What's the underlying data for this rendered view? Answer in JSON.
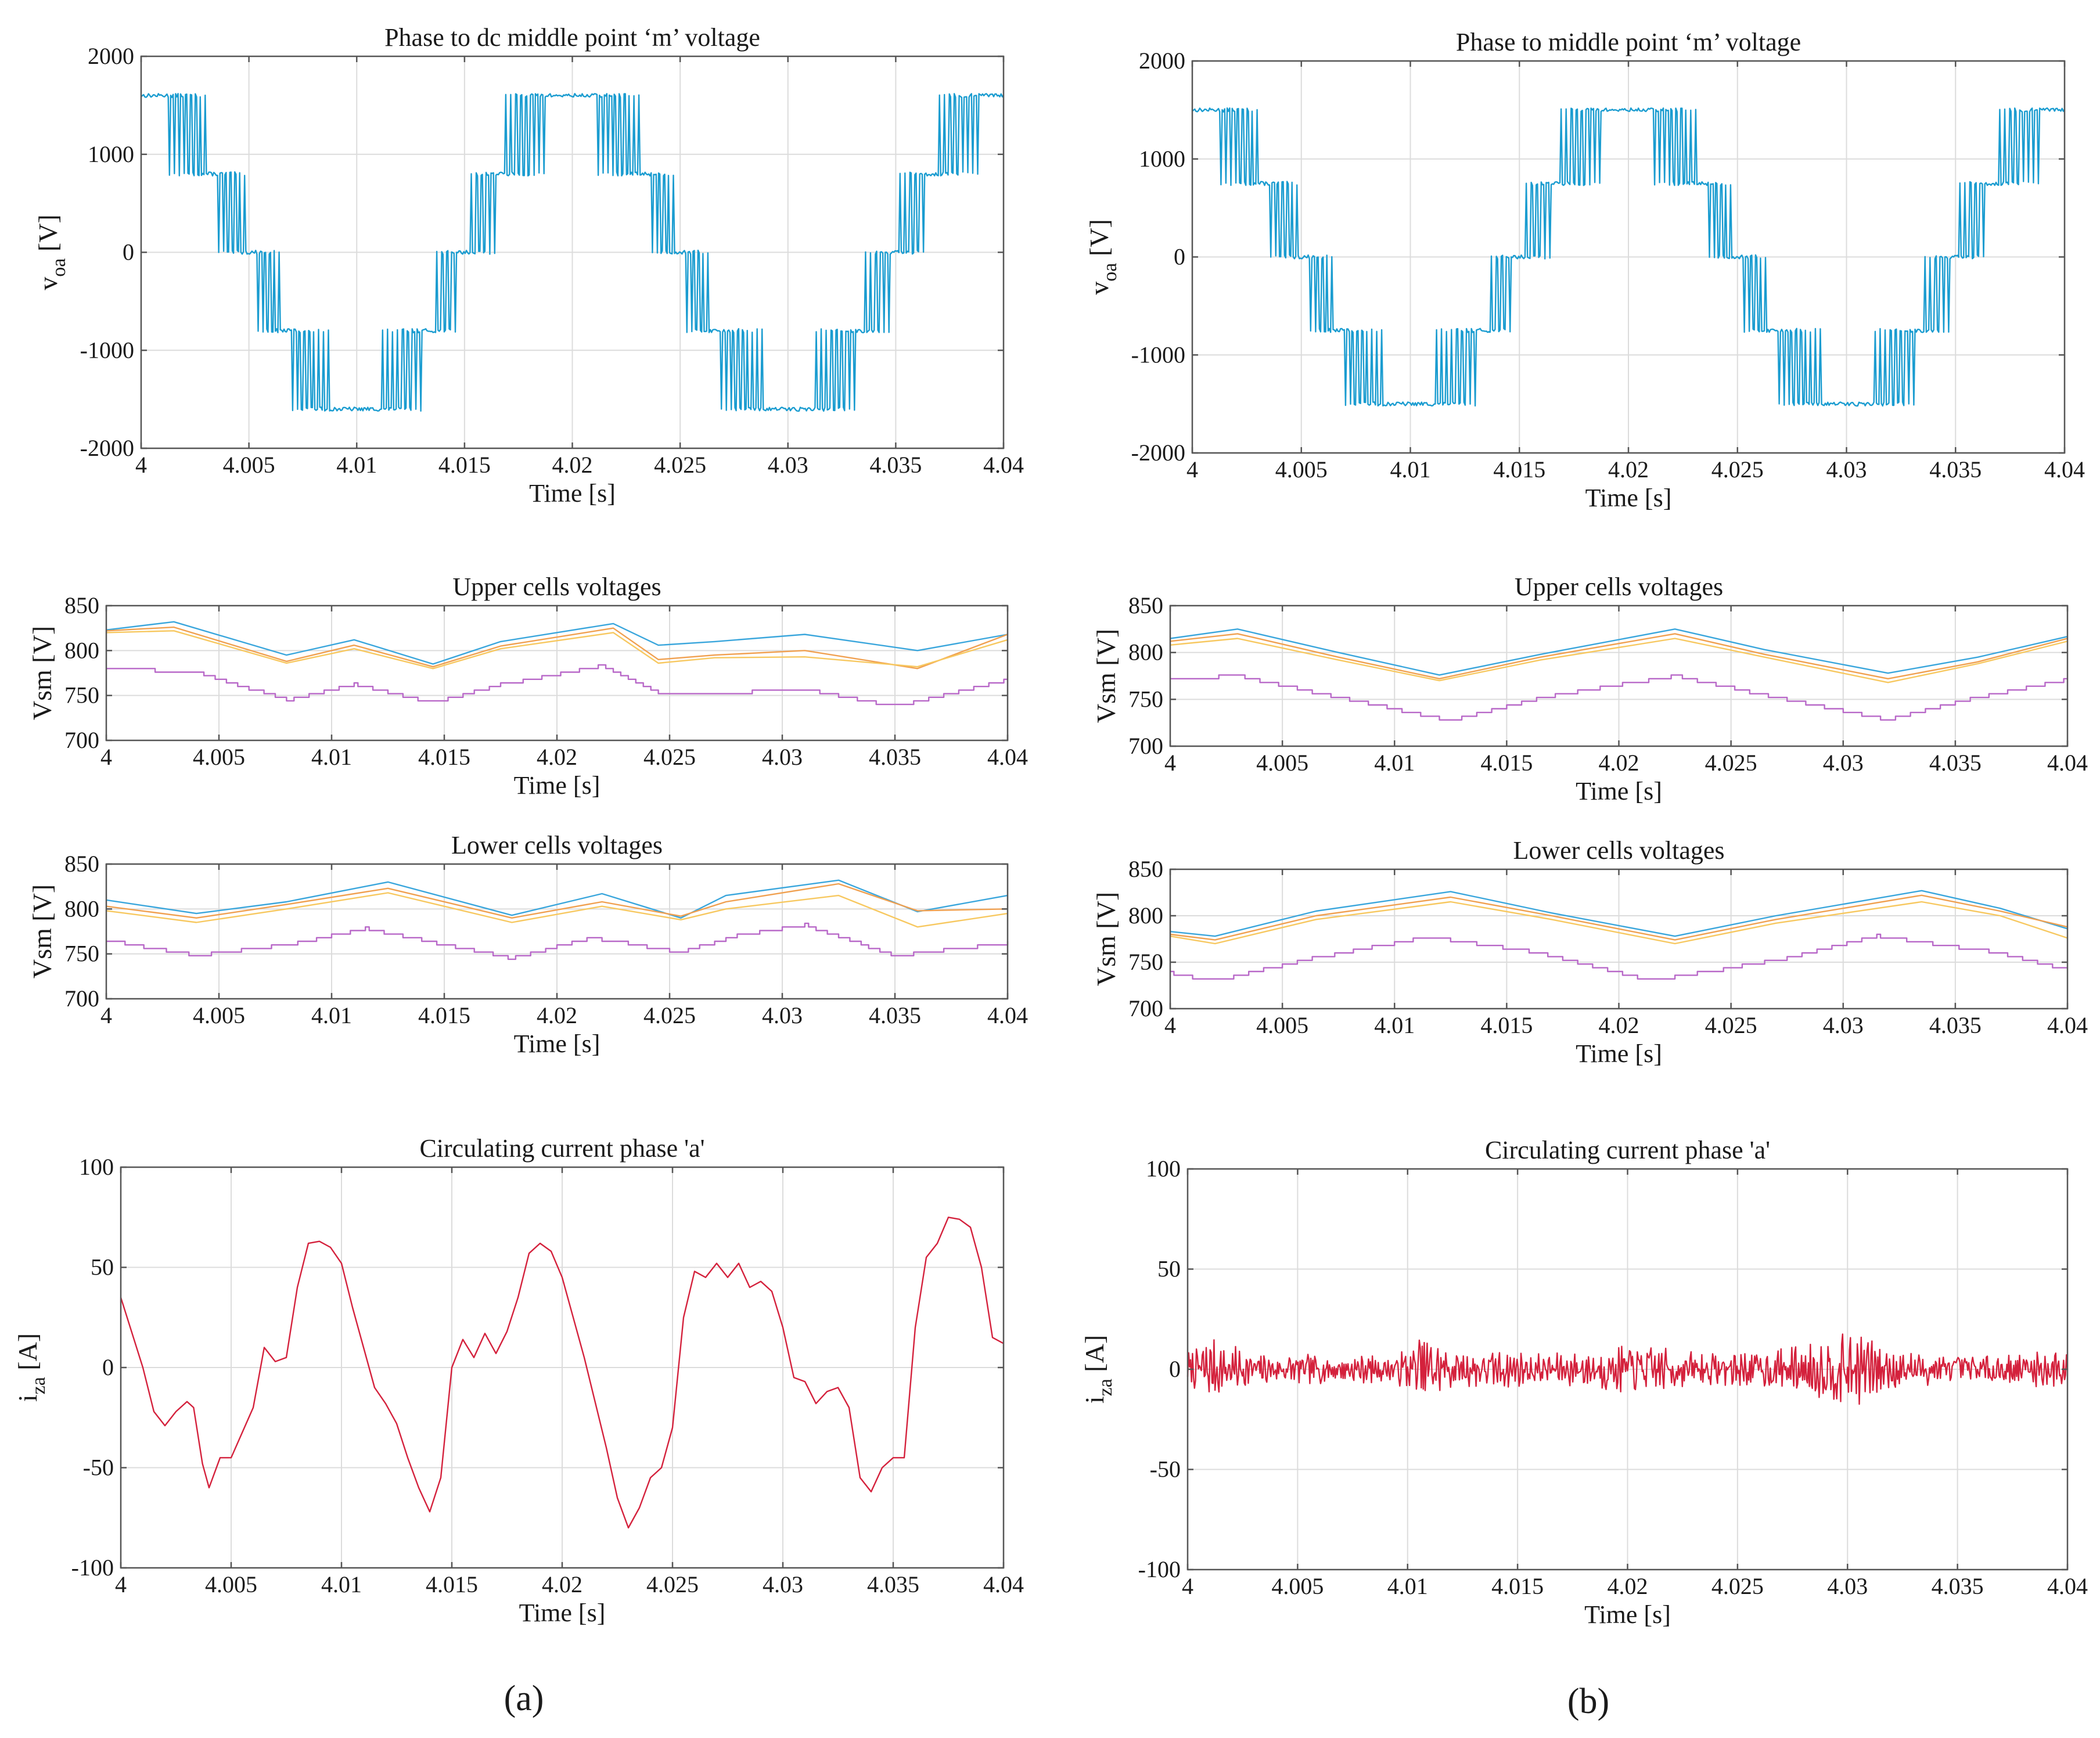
{
  "figure": {
    "panel_labels": [
      "(a)",
      "(b)"
    ]
  },
  "chart_data": [
    {
      "type": "line",
      "id": "a1",
      "title": "Phase to dc middle point ‘m’ voltage",
      "xlabel": "Time [s]",
      "ylabel": "v",
      "ylabel_sub": "oa",
      "ylabel_tail": " [V]",
      "xlim": [
        4,
        4.04
      ],
      "ylim": [
        -2000,
        2000
      ],
      "xticks": [
        4,
        4.005,
        4.01,
        4.015,
        4.02,
        4.025,
        4.03,
        4.035,
        4.04
      ],
      "xtick_labels": [
        "4",
        "4.005",
        "4.01",
        "4.015",
        "4.02",
        "4.025",
        "4.03",
        "4.035",
        "4.04"
      ],
      "yticks": [
        -2000,
        -1000,
        0,
        1000,
        2000
      ],
      "ytick_labels": [
        "-2000",
        "-1000",
        "0",
        "1000",
        "2000"
      ],
      "series": [
        {
          "name": "v_oa",
          "color": "#1a9cd0",
          "generator": "multilevel",
          "amp": 1600,
          "phase": 1.5708,
          "freq": 50,
          "levels": [
            -1600,
            -800,
            0,
            800,
            1600
          ],
          "samples": 700
        }
      ]
    },
    {
      "type": "line",
      "id": "a2",
      "title": "Upper cells voltages",
      "xlabel": "Time [s]",
      "ylabel": "Vsm [V]",
      "xlim": [
        4,
        4.04
      ],
      "ylim": [
        700,
        850
      ],
      "xticks": [
        4,
        4.005,
        4.01,
        4.015,
        4.02,
        4.025,
        4.03,
        4.035,
        4.04
      ],
      "xtick_labels": [
        "4",
        "4.005",
        "4.01",
        "4.015",
        "4.02",
        "4.025",
        "4.03",
        "4.035",
        "4.04"
      ],
      "yticks": [
        700,
        750,
        800,
        850
      ],
      "ytick_labels": [
        "700",
        "750",
        "800",
        "850"
      ],
      "series": [
        {
          "name": "cell 1",
          "color": "#3aa6dc",
          "x": [
            4,
            4.003,
            4.008,
            4.011,
            4.0145,
            4.0175,
            4.0225,
            4.0245,
            4.027,
            4.031,
            4.036,
            4.04
          ],
          "values": [
            823,
            832,
            795,
            812,
            785,
            810,
            830,
            806,
            810,
            818,
            800,
            818
          ]
        },
        {
          "name": "cell 2",
          "color": "#f0a050",
          "x": [
            4,
            4.003,
            4.008,
            4.011,
            4.0145,
            4.0175,
            4.0225,
            4.0245,
            4.027,
            4.031,
            4.036,
            4.04
          ],
          "values": [
            822,
            826,
            788,
            806,
            782,
            805,
            825,
            790,
            795,
            800,
            780,
            818
          ]
        },
        {
          "name": "cell 3",
          "color": "#f7c860",
          "x": [
            4,
            4.003,
            4.008,
            4.011,
            4.0145,
            4.0175,
            4.0225,
            4.0245,
            4.027,
            4.031,
            4.036,
            4.04
          ],
          "values": [
            820,
            822,
            786,
            802,
            780,
            802,
            820,
            786,
            792,
            793,
            782,
            812
          ]
        },
        {
          "name": "cell 4",
          "color": "#b868c8",
          "step": true,
          "x": [
            4,
            4.004,
            4.008,
            4.011,
            4.0145,
            4.0175,
            4.022,
            4.0245,
            4.027,
            4.031,
            4.035,
            4.04
          ],
          "values": [
            780,
            776,
            745,
            762,
            742,
            762,
            783,
            752,
            752,
            757,
            738,
            767
          ]
        }
      ]
    },
    {
      "type": "line",
      "id": "a3",
      "title": "Lower cells voltages",
      "xlabel": "Time [s]",
      "ylabel": "Vsm [V]",
      "xlim": [
        4,
        4.04
      ],
      "ylim": [
        700,
        850
      ],
      "xticks": [
        4,
        4.005,
        4.01,
        4.015,
        4.02,
        4.025,
        4.03,
        4.035,
        4.04
      ],
      "xtick_labels": [
        "4",
        "4.005",
        "4.01",
        "4.015",
        "4.02",
        "4.025",
        "4.03",
        "4.035",
        "4.04"
      ],
      "yticks": [
        700,
        750,
        800,
        850
      ],
      "ytick_labels": [
        "700",
        "750",
        "800",
        "850"
      ],
      "series": [
        {
          "name": "cell 1",
          "color": "#3aa6dc",
          "x": [
            4,
            4.004,
            4.008,
            4.0125,
            4.018,
            4.022,
            4.0255,
            4.0275,
            4.0325,
            4.036,
            4.04
          ],
          "values": [
            810,
            795,
            808,
            830,
            793,
            817,
            790,
            815,
            832,
            797,
            815
          ]
        },
        {
          "name": "cell 2",
          "color": "#f0a050",
          "x": [
            4,
            4.004,
            4.008,
            4.0125,
            4.018,
            4.022,
            4.0255,
            4.0275,
            4.0325,
            4.036,
            4.04
          ],
          "values": [
            803,
            790,
            805,
            823,
            790,
            808,
            792,
            808,
            828,
            798,
            800
          ]
        },
        {
          "name": "cell 3",
          "color": "#f7c860",
          "x": [
            4,
            4.004,
            4.008,
            4.0125,
            4.018,
            4.022,
            4.0255,
            4.0275,
            4.0325,
            4.036,
            4.04
          ],
          "values": [
            798,
            785,
            800,
            818,
            785,
            803,
            788,
            800,
            815,
            780,
            795
          ]
        },
        {
          "name": "cell 4",
          "color": "#b868c8",
          "step": true,
          "x": [
            4,
            4.004,
            4.008,
            4.0115,
            4.018,
            4.0215,
            4.0255,
            4.028,
            4.031,
            4.035,
            4.04
          ],
          "values": [
            765,
            748,
            760,
            778,
            745,
            768,
            752,
            770,
            782,
            748,
            762
          ]
        }
      ]
    },
    {
      "type": "line",
      "id": "a4",
      "title": "Circulating current phase 'a'",
      "xlabel": "Time [s]",
      "ylabel": "i",
      "ylabel_sub": "za",
      "ylabel_tail": " [A]",
      "xlim": [
        4,
        4.04
      ],
      "ylim": [
        -100,
        100
      ],
      "xticks": [
        4,
        4.005,
        4.01,
        4.015,
        4.02,
        4.025,
        4.03,
        4.035,
        4.04
      ],
      "xtick_labels": [
        "4",
        "4.005",
        "4.01",
        "4.015",
        "4.02",
        "4.025",
        "4.03",
        "4.035",
        "4.04"
      ],
      "yticks": [
        -100,
        -50,
        0,
        50,
        100
      ],
      "ytick_labels": [
        "-100",
        "-50",
        "0",
        "50",
        "100"
      ],
      "series": [
        {
          "name": "i_za",
          "color": "#d4213c",
          "x": [
            4,
            4.001,
            4.0015,
            4.002,
            4.0025,
            4.003,
            4.0033,
            4.0037,
            4.004,
            4.0045,
            4.005,
            4.006,
            4.0065,
            4.007,
            4.0075,
            4.008,
            4.0085,
            4.009,
            4.0095,
            4.01,
            4.0105,
            4.011,
            4.0115,
            4.012,
            4.0125,
            4.013,
            4.0135,
            4.014,
            4.0145,
            4.015,
            4.0155,
            4.016,
            4.0165,
            4.017,
            4.0175,
            4.018,
            4.0185,
            4.019,
            4.0195,
            4.02,
            4.021,
            4.022,
            4.0225,
            4.023,
            4.0235,
            4.024,
            4.0245,
            4.025,
            4.0255,
            4.026,
            4.0265,
            4.027,
            4.0275,
            4.028,
            4.0285,
            4.029,
            4.0295,
            4.03,
            4.0305,
            4.031,
            4.0315,
            4.032,
            4.0325,
            4.033,
            4.0335,
            4.034,
            4.0345,
            4.035,
            4.0355,
            4.036,
            4.0365,
            4.037,
            4.0375,
            4.038,
            4.0385,
            4.039,
            4.0395,
            4.04
          ],
          "values": [
            35,
            0,
            -22,
            -29,
            -22,
            -17,
            -20,
            -48,
            -60,
            -45,
            -45,
            -20,
            10,
            3,
            5,
            40,
            62,
            63,
            60,
            52,
            30,
            10,
            -10,
            -18,
            -28,
            -45,
            -60,
            -72,
            -55,
            0,
            14,
            5,
            17,
            7,
            18,
            35,
            57,
            62,
            58,
            45,
            5,
            -40,
            -65,
            -80,
            -70,
            -55,
            -50,
            -30,
            25,
            48,
            45,
            52,
            45,
            52,
            40,
            43,
            38,
            20,
            -5,
            -7,
            -18,
            -12,
            -10,
            -20,
            -55,
            -62,
            -50,
            -45,
            -45,
            20,
            55,
            62,
            75,
            74,
            70,
            50,
            15,
            12
          ]
        }
      ]
    },
    {
      "type": "line",
      "id": "b1",
      "title": "Phase to middle point ‘m’ voltage",
      "xlabel": "Time [s]",
      "ylabel": "v",
      "ylabel_sub": "oa",
      "ylabel_tail": " [V]",
      "xlim": [
        4,
        4.04
      ],
      "ylim": [
        -2000,
        2000
      ],
      "xticks": [
        4,
        4.005,
        4.01,
        4.015,
        4.02,
        4.025,
        4.03,
        4.035,
        4.04
      ],
      "xtick_labels": [
        "4",
        "4.005",
        "4.01",
        "4.015",
        "4.02",
        "4.025",
        "4.03",
        "4.035",
        "4.04"
      ],
      "yticks": [
        -2000,
        -1000,
        0,
        1000,
        2000
      ],
      "ytick_labels": [
        "-2000",
        "-1000",
        "0",
        "1000",
        "2000"
      ],
      "series": [
        {
          "name": "v_oa",
          "color": "#1a9cd0",
          "generator": "multilevel",
          "amp": 1500,
          "phase": 1.5708,
          "freq": 50,
          "levels": [
            -1500,
            -750,
            0,
            750,
            1500
          ],
          "samples": 700
        }
      ]
    },
    {
      "type": "line",
      "id": "b2",
      "title": "Upper cells voltages",
      "xlabel": "Time [s]",
      "ylabel": "Vsm [V]",
      "xlim": [
        4,
        4.04
      ],
      "ylim": [
        700,
        850
      ],
      "xticks": [
        4,
        4.005,
        4.01,
        4.015,
        4.02,
        4.025,
        4.03,
        4.035,
        4.04
      ],
      "xtick_labels": [
        "4",
        "4.005",
        "4.01",
        "4.015",
        "4.02",
        "4.025",
        "4.03",
        "4.035",
        "4.04"
      ],
      "yticks": [
        700,
        750,
        800,
        850
      ],
      "ytick_labels": [
        "700",
        "750",
        "800",
        "850"
      ],
      "series": [
        {
          "name": "cell 1",
          "color": "#3aa6dc",
          "x": [
            4,
            4.003,
            4.0075,
            4.012,
            4.0165,
            4.0225,
            4.0265,
            4.032,
            4.036,
            4.04
          ],
          "values": [
            815,
            825,
            800,
            776,
            798,
            825,
            803,
            778,
            795,
            817
          ]
        },
        {
          "name": "cell 2",
          "color": "#f0a050",
          "x": [
            4,
            4.003,
            4.0075,
            4.012,
            4.0165,
            4.0225,
            4.0265,
            4.032,
            4.036,
            4.04
          ],
          "values": [
            812,
            820,
            795,
            772,
            795,
            820,
            798,
            772,
            790,
            815
          ]
        },
        {
          "name": "cell 3",
          "color": "#f7c860",
          "x": [
            4,
            4.003,
            4.0075,
            4.012,
            4.0165,
            4.0225,
            4.0265,
            4.032,
            4.036,
            4.04
          ],
          "values": [
            808,
            815,
            792,
            770,
            792,
            815,
            795,
            768,
            788,
            812
          ]
        },
        {
          "name": "cell 4",
          "color": "#b868c8",
          "step": true,
          "x": [
            4,
            4.003,
            4.0075,
            4.0125,
            4.0165,
            4.0225,
            4.027,
            4.032,
            4.036,
            4.04
          ],
          "values": [
            772,
            775,
            752,
            727,
            752,
            775,
            752,
            728,
            752,
            771
          ]
        }
      ]
    },
    {
      "type": "line",
      "id": "b3",
      "title": "Lower cells voltages",
      "xlabel": "Time [s]",
      "ylabel": "Vsm [V]",
      "xlim": [
        4,
        4.04
      ],
      "ylim": [
        700,
        850
      ],
      "xticks": [
        4,
        4.005,
        4.01,
        4.015,
        4.02,
        4.025,
        4.03,
        4.035,
        4.04
      ],
      "xtick_labels": [
        "4",
        "4.005",
        "4.01",
        "4.015",
        "4.02",
        "4.025",
        "4.03",
        "4.035",
        "4.04"
      ],
      "yticks": [
        700,
        750,
        800,
        850
      ],
      "ytick_labels": [
        "700",
        "750",
        "800",
        "850"
      ],
      "series": [
        {
          "name": "cell 1",
          "color": "#3aa6dc",
          "x": [
            4,
            4.002,
            4.0065,
            4.0125,
            4.017,
            4.0225,
            4.027,
            4.0335,
            4.037,
            4.04
          ],
          "values": [
            783,
            778,
            805,
            826,
            803,
            778,
            800,
            827,
            808,
            786
          ]
        },
        {
          "name": "cell 2",
          "color": "#f0a050",
          "x": [
            4,
            4.002,
            4.0065,
            4.0125,
            4.017,
            4.0225,
            4.027,
            4.0335,
            4.037,
            4.04
          ],
          "values": [
            780,
            774,
            800,
            820,
            800,
            774,
            796,
            822,
            805,
            788
          ]
        },
        {
          "name": "cell 3",
          "color": "#f7c860",
          "x": [
            4,
            4.002,
            4.0065,
            4.0125,
            4.017,
            4.0225,
            4.027,
            4.0335,
            4.037,
            4.04
          ],
          "values": [
            778,
            770,
            796,
            815,
            796,
            770,
            792,
            815,
            800,
            776
          ]
        },
        {
          "name": "cell 4",
          "color": "#b868c8",
          "step": true,
          "x": [
            4,
            4.002,
            4.0065,
            4.0115,
            4.0165,
            4.0215,
            4.027,
            4.0315,
            4.037,
            4.04
          ],
          "values": [
            738,
            730,
            755,
            777,
            760,
            730,
            752,
            778,
            760,
            742
          ]
        }
      ]
    },
    {
      "type": "line",
      "id": "b4",
      "title": "Circulating current phase 'a'",
      "xlabel": "Time [s]",
      "ylabel": "i",
      "ylabel_sub": "za",
      "ylabel_tail": " [A]",
      "xlim": [
        4,
        4.04
      ],
      "ylim": [
        -100,
        100
      ],
      "xticks": [
        4,
        4.005,
        4.01,
        4.015,
        4.02,
        4.025,
        4.03,
        4.035,
        4.04
      ],
      "xtick_labels": [
        "4",
        "4.005",
        "4.01",
        "4.015",
        "4.02",
        "4.025",
        "4.03",
        "4.035",
        "4.04"
      ],
      "yticks": [
        -100,
        -50,
        0,
        50,
        100
      ],
      "ytick_labels": [
        "-100",
        "-50",
        "0",
        "50",
        "100"
      ],
      "series": [
        {
          "name": "i_za",
          "color": "#d4213c",
          "generator": "noise",
          "envelope_x": [
            4,
            4.001,
            4.003,
            4.0095,
            4.0105,
            4.012,
            4.017,
            4.02,
            4.024,
            4.0275,
            4.0305,
            4.0325,
            4.036,
            4.04
          ],
          "envelope_values": [
            8,
            14,
            7,
            6,
            16,
            9,
            7,
            11,
            7,
            10,
            17,
            8,
            6,
            9
          ],
          "samples": 900,
          "seed": 7
        }
      ]
    }
  ]
}
